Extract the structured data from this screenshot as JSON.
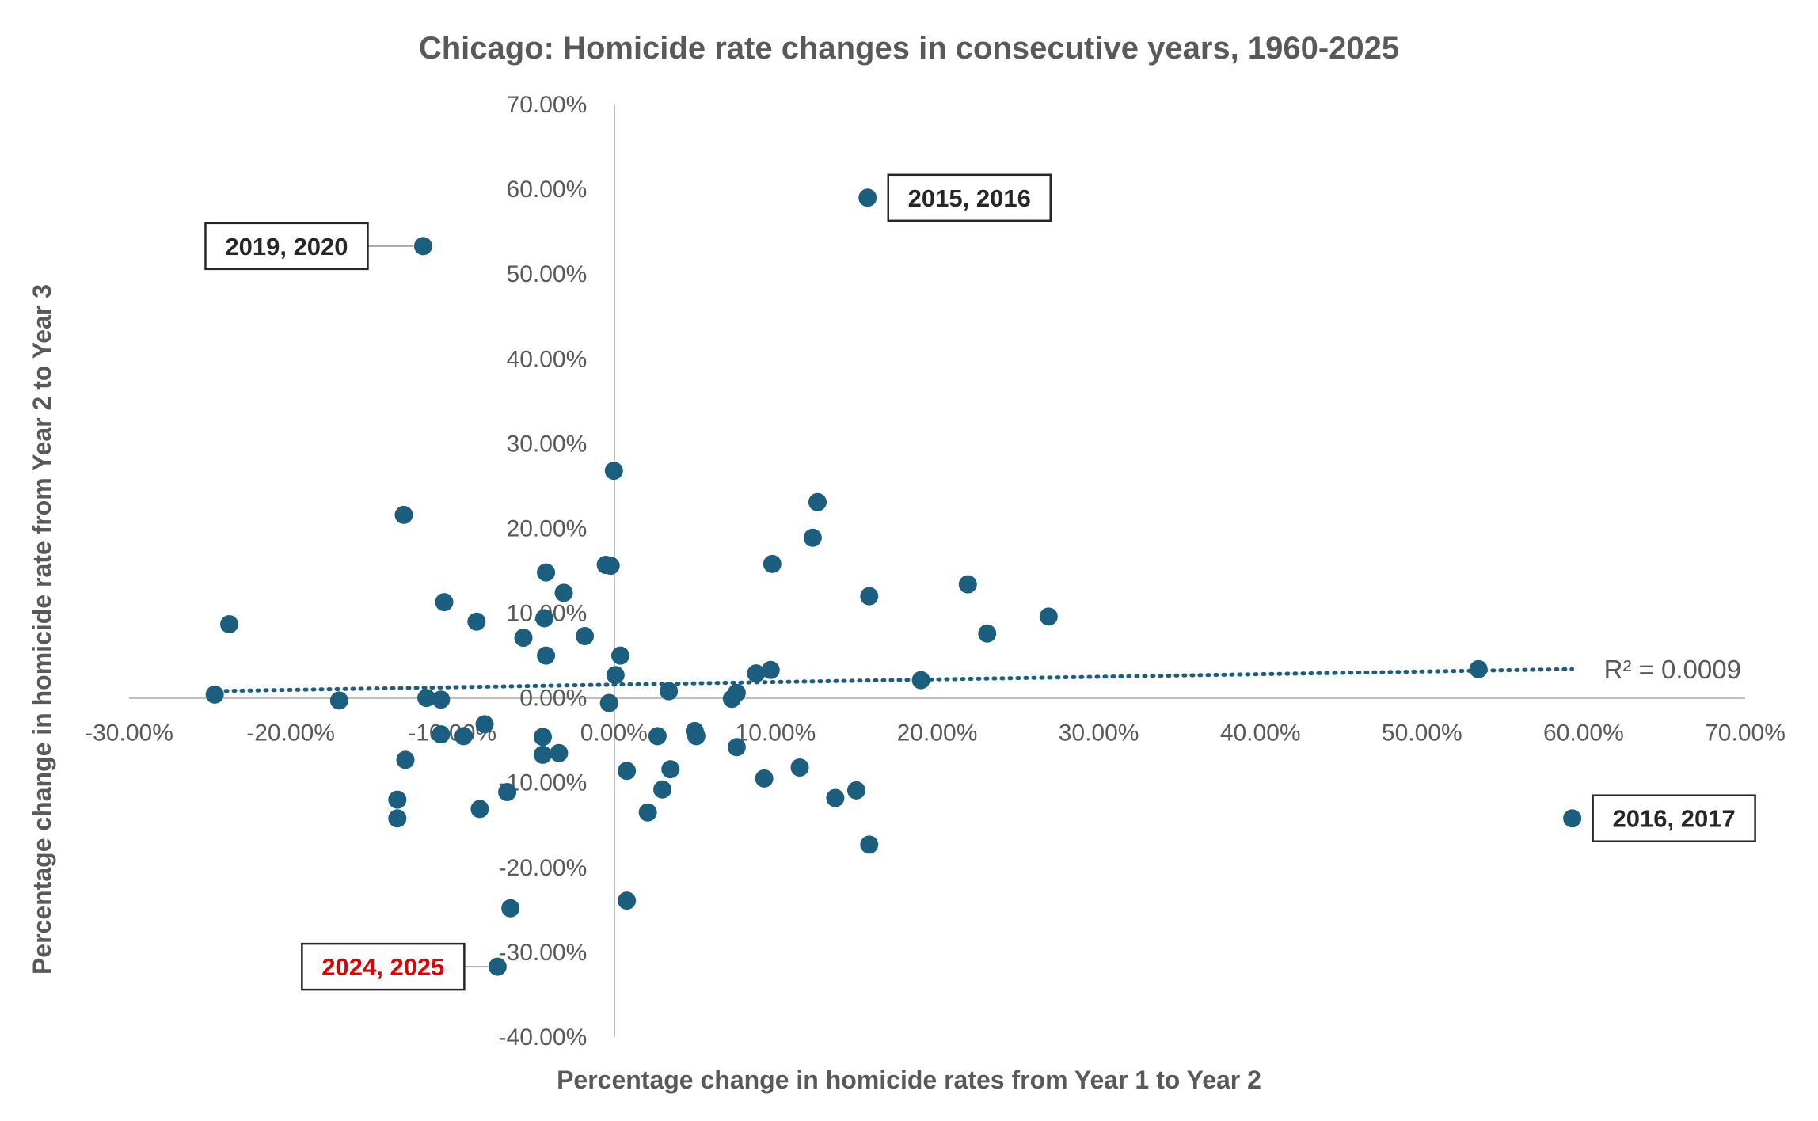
{
  "chart_data": {
    "type": "scatter",
    "title": "Chicago: Homicide rate changes in consecutive years, 1960-2025",
    "xlabel": "Percentage change in homicide rates from Year 1 to Year 2",
    "ylabel": "Percentage change in homicide rate from Year 2 to Year 3",
    "xlim": [
      -30,
      70
    ],
    "ylim": [
      -40,
      70
    ],
    "x_ticks": [
      "-30.00%",
      "-20.00%",
      "-10.00%",
      "0.00%",
      "10.00%",
      "20.00%",
      "30.00%",
      "40.00%",
      "50.00%",
      "60.00%",
      "70.00%"
    ],
    "y_ticks": [
      "70.00%",
      "60.00%",
      "50.00%",
      "40.00%",
      "30.00%",
      "20.00%",
      "10.00%",
      "0.00%",
      "-10.00%",
      "-20.00%",
      "-30.00%",
      "-40.00%"
    ],
    "x_tick_values": [
      -30,
      -20,
      -10,
      0,
      10,
      20,
      30,
      40,
      50,
      60,
      70
    ],
    "y_tick_values": [
      70,
      60,
      50,
      40,
      30,
      20,
      10,
      0,
      -10,
      -20,
      -30,
      -40
    ],
    "grid": false,
    "marker_color": "#1b5e7e",
    "points": [
      {
        "x": 15.7,
        "y": 59.0
      },
      {
        "x": -11.8,
        "y": 53.3
      },
      {
        "x": 59.3,
        "y": -14.2
      },
      {
        "x": -7.2,
        "y": -31.7
      },
      {
        "x": 53.5,
        "y": 3.4
      },
      {
        "x": -24.7,
        "y": 0.4
      },
      {
        "x": -23.8,
        "y": 8.7
      },
      {
        "x": -17.0,
        "y": -0.3
      },
      {
        "x": -13.4,
        "y": -12.0
      },
      {
        "x": -13.4,
        "y": -14.2
      },
      {
        "x": -13.0,
        "y": 21.6
      },
      {
        "x": -12.9,
        "y": -7.3
      },
      {
        "x": -11.6,
        "y": 0.0
      },
      {
        "x": -10.7,
        "y": -4.3
      },
      {
        "x": -10.7,
        "y": -0.2
      },
      {
        "x": -10.5,
        "y": 11.3
      },
      {
        "x": -9.3,
        "y": -4.5
      },
      {
        "x": -8.5,
        "y": 9.0
      },
      {
        "x": -8.3,
        "y": -13.1
      },
      {
        "x": -8.0,
        "y": -3.1
      },
      {
        "x": -6.6,
        "y": -11.1
      },
      {
        "x": -6.4,
        "y": -24.8
      },
      {
        "x": -5.6,
        "y": 7.1
      },
      {
        "x": -4.4,
        "y": -4.6
      },
      {
        "x": -4.4,
        "y": -6.7
      },
      {
        "x": -4.3,
        "y": 9.4
      },
      {
        "x": -4.2,
        "y": 14.8
      },
      {
        "x": -4.2,
        "y": 5.0
      },
      {
        "x": -3.4,
        "y": -6.5
      },
      {
        "x": -3.1,
        "y": 12.4
      },
      {
        "x": -1.8,
        "y": 7.3
      },
      {
        "x": -0.5,
        "y": 15.7
      },
      {
        "x": -0.2,
        "y": 15.6
      },
      {
        "x": -0.3,
        "y": -0.6
      },
      {
        "x": 0.0,
        "y": 26.8
      },
      {
        "x": 0.1,
        "y": 2.7
      },
      {
        "x": 0.4,
        "y": 5.0
      },
      {
        "x": 0.8,
        "y": -8.6
      },
      {
        "x": 0.8,
        "y": -23.9
      },
      {
        "x": 2.1,
        "y": -13.5
      },
      {
        "x": 2.7,
        "y": -4.5
      },
      {
        "x": 3.0,
        "y": -10.8
      },
      {
        "x": 3.4,
        "y": 0.8
      },
      {
        "x": 3.5,
        "y": -8.4
      },
      {
        "x": 5.0,
        "y": -3.9
      },
      {
        "x": 5.1,
        "y": -4.5
      },
      {
        "x": 7.3,
        "y": -0.1
      },
      {
        "x": 7.6,
        "y": 0.6
      },
      {
        "x": 7.6,
        "y": -5.8
      },
      {
        "x": 8.8,
        "y": 2.9
      },
      {
        "x": 9.3,
        "y": -9.5
      },
      {
        "x": 9.7,
        "y": 3.3
      },
      {
        "x": 9.8,
        "y": 15.8
      },
      {
        "x": 11.5,
        "y": -8.2
      },
      {
        "x": 12.3,
        "y": 18.9
      },
      {
        "x": 12.6,
        "y": 23.1
      },
      {
        "x": 13.7,
        "y": -11.8
      },
      {
        "x": 15.0,
        "y": -10.9
      },
      {
        "x": 15.8,
        "y": 12.0
      },
      {
        "x": 15.8,
        "y": -17.3
      },
      {
        "x": 19.0,
        "y": 2.1
      },
      {
        "x": 21.9,
        "y": 13.4
      },
      {
        "x": 23.1,
        "y": 7.6
      },
      {
        "x": 26.9,
        "y": 9.6
      }
    ],
    "trendline": {
      "style": "dotted linear",
      "x": [
        -25,
        59.3
      ],
      "y": [
        0.8,
        3.4
      ],
      "label": "R² = 0.0009"
    },
    "annotations": [
      {
        "text": "2015, 2016",
        "color": "#262626",
        "x": 15.7,
        "y": 59.0
      },
      {
        "text": "2019, 2020",
        "color": "#262626",
        "x": -11.8,
        "y": 53.3
      },
      {
        "text": "2016, 2017",
        "color": "#262626",
        "x": 59.3,
        "y": -14.2
      },
      {
        "text": "2024, 2025",
        "color": "#e00000",
        "x": -7.2,
        "y": -31.7
      }
    ]
  }
}
